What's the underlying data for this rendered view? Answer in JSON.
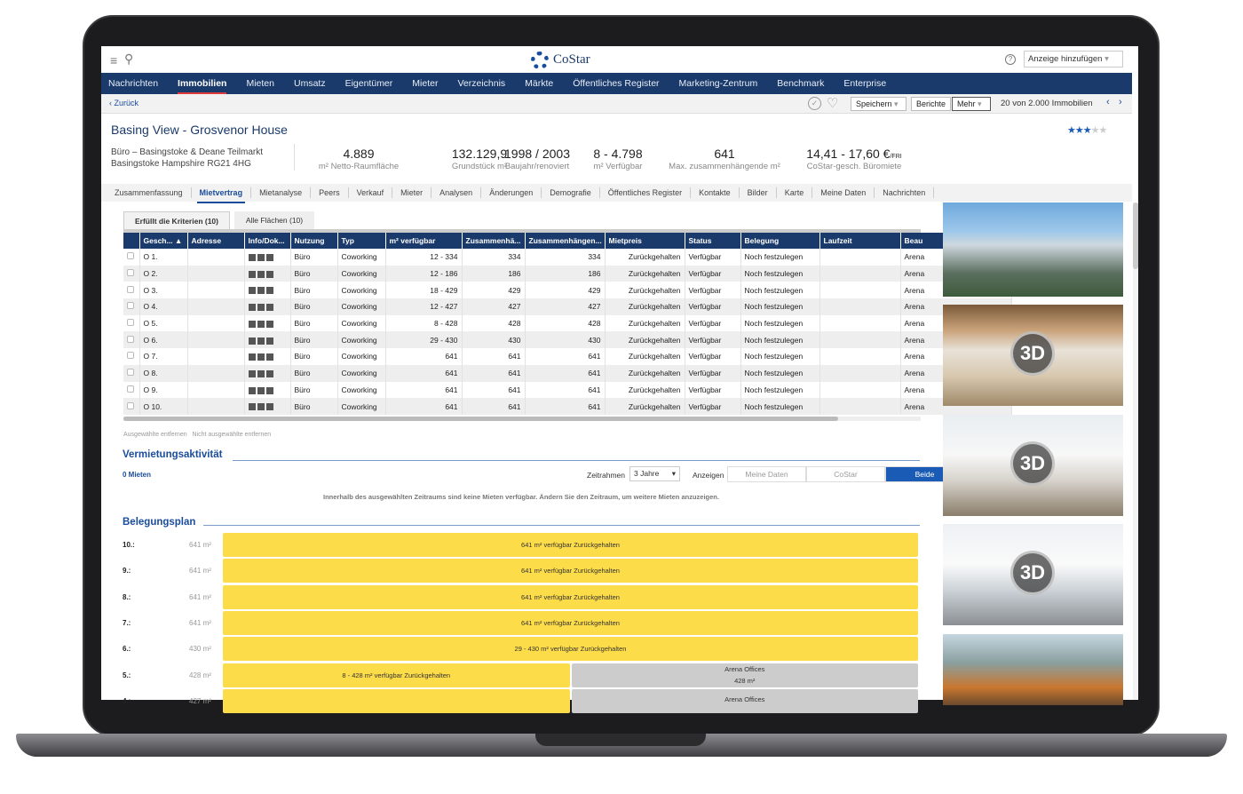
{
  "app": {
    "brand": "CoStar",
    "help": "?",
    "add_listing": "Anzeige hinzufügen"
  },
  "nav": [
    "Nachrichten",
    "Immobilien",
    "Mieten",
    "Umsatz",
    "Eigentümer",
    "Mieter",
    "Verzeichnis",
    "Märkte",
    "Öffentliches Register",
    "Marketing-Zentrum",
    "Benchmark",
    "Enterprise"
  ],
  "nav_active": 1,
  "subbar": {
    "back": "‹ Zurück",
    "save": "Speichern",
    "reports": "Berichte",
    "more": "Mehr",
    "count": "20 von 2.000 Immobilien"
  },
  "property": {
    "title": "Basing View - Grosvenor House",
    "line1": "Büro – Basingstoke & Deane Teilmarkt",
    "line2": "Basingstoke Hampshire RG21 4HG",
    "rating": 3,
    "rating_max": 5
  },
  "stats": [
    {
      "value": "4.889",
      "label": "m² Netto-Raumfläche"
    },
    {
      "value": "132.129,9",
      "label": "Grundstück m²"
    },
    {
      "value": "1998 / 2003",
      "label": "Baujahr/renoviert"
    },
    {
      "value": "8 - 4.798",
      "label": "m² Verfügbar"
    },
    {
      "value": "641",
      "label": "Max. zusammenhängende m²"
    },
    {
      "value": "14,41 - 17,60 €",
      "suffix": "/FRI",
      "label": "CoStar-gesch. Büromiete"
    }
  ],
  "tabs": [
    "Zusammenfassung",
    "Mietvertrag",
    "Mietanalyse",
    "Peers",
    "Verkauf",
    "Mieter",
    "Analysen",
    "Änderungen",
    "Demografie",
    "Öffentliches Register",
    "Kontakte",
    "Bilder",
    "Karte",
    "Meine Daten",
    "Nachrichten"
  ],
  "tab_active": 1,
  "subtabs": [
    "Erfüllt die Kriterien (10)",
    "Alle Flächen (10)"
  ],
  "table": {
    "columns": [
      "",
      "Gesch... ▲",
      "Adresse",
      "Info/Dok...",
      "Nutzung",
      "Typ",
      "m² verfügbar",
      "Zusammenhä...",
      "Zusammenhängen...",
      "Mietpreis",
      "Status",
      "Belegung",
      "Laufzeit",
      "Beau"
    ],
    "rows": [
      [
        "O 1.",
        "",
        "Büro",
        "Coworking",
        "12 - 334",
        "334",
        "334",
        "Zurückgehalten",
        "Verfügbar",
        "Noch festzulegen",
        "",
        "Arena"
      ],
      [
        "O 2.",
        "",
        "Büro",
        "Coworking",
        "12 - 186",
        "186",
        "186",
        "Zurückgehalten",
        "Verfügbar",
        "Noch festzulegen",
        "",
        "Arena"
      ],
      [
        "O 3.",
        "",
        "Büro",
        "Coworking",
        "18 - 429",
        "429",
        "429",
        "Zurückgehalten",
        "Verfügbar",
        "Noch festzulegen",
        "",
        "Arena"
      ],
      [
        "O 4.",
        "",
        "Büro",
        "Coworking",
        "12 - 427",
        "427",
        "427",
        "Zurückgehalten",
        "Verfügbar",
        "Noch festzulegen",
        "",
        "Arena"
      ],
      [
        "O 5.",
        "",
        "Büro",
        "Coworking",
        "8 - 428",
        "428",
        "428",
        "Zurückgehalten",
        "Verfügbar",
        "Noch festzulegen",
        "",
        "Arena"
      ],
      [
        "O 6.",
        "",
        "Büro",
        "Coworking",
        "29 - 430",
        "430",
        "430",
        "Zurückgehalten",
        "Verfügbar",
        "Noch festzulegen",
        "",
        "Arena"
      ],
      [
        "O 7.",
        "",
        "Büro",
        "Coworking",
        "641",
        "641",
        "641",
        "Zurückgehalten",
        "Verfügbar",
        "Noch festzulegen",
        "",
        "Arena"
      ],
      [
        "O 8.",
        "",
        "Büro",
        "Coworking",
        "641",
        "641",
        "641",
        "Zurückgehalten",
        "Verfügbar",
        "Noch festzulegen",
        "",
        "Arena"
      ],
      [
        "O 9.",
        "",
        "Büro",
        "Coworking",
        "641",
        "641",
        "641",
        "Zurückgehalten",
        "Verfügbar",
        "Noch festzulegen",
        "",
        "Arena"
      ],
      [
        "O 10.",
        "",
        "Büro",
        "Coworking",
        "641",
        "641",
        "641",
        "Zurückgehalten",
        "Verfügbar",
        "Noch festzulegen",
        "",
        "Arena"
      ]
    ]
  },
  "table_actions": [
    "Ausgewählte entfernen",
    "Nicht ausgewählte entfernen"
  ],
  "leasing": {
    "title": "Vermietungsaktivität",
    "count": "0 Mieten",
    "timeframe_label": "Zeitrahmen",
    "timeframe": "3 Jahre",
    "show_label": "Anzeigen",
    "toggle": [
      "Meine Daten",
      "CoStar",
      "Beide"
    ],
    "toggle_active": 2,
    "empty": "Innerhalb des ausgewählten Zeitraums sind keine Mieten verfügbar. Ändern Sie den Zeitraum, um weitere Mieten anzuzeigen."
  },
  "plan": {
    "title": "Belegungsplan",
    "rows": [
      {
        "floor": "10.:",
        "size": "641 m²",
        "bars": [
          {
            "text": "641 m² verfügbar Zurückgehalten",
            "type": "available",
            "share": 1
          }
        ]
      },
      {
        "floor": "9.:",
        "size": "641 m²",
        "bars": [
          {
            "text": "641 m² verfügbar Zurückgehalten",
            "type": "available",
            "share": 1
          }
        ]
      },
      {
        "floor": "8.:",
        "size": "641 m²",
        "bars": [
          {
            "text": "641 m² verfügbar Zurückgehalten",
            "type": "available",
            "share": 1
          }
        ]
      },
      {
        "floor": "7.:",
        "size": "641 m²",
        "bars": [
          {
            "text": "641 m² verfügbar Zurückgehalten",
            "type": "available",
            "share": 1
          }
        ]
      },
      {
        "floor": "6.:",
        "size": "430 m²",
        "bars": [
          {
            "text": "29 - 430 m² verfügbar Zurückgehalten",
            "type": "available",
            "share": 1
          }
        ]
      },
      {
        "floor": "5.:",
        "size": "428 m²",
        "bars": [
          {
            "text": "8 - 428 m² verfügbar Zurückgehalten",
            "type": "available",
            "share": 0.5
          },
          {
            "text": "Arena Offices",
            "sub": "428 m²",
            "type": "occupied",
            "share": 0.5
          }
        ]
      },
      {
        "floor": "4.:",
        "size": "427 m²",
        "bars": [
          {
            "text": "",
            "type": "available",
            "share": 0.5
          },
          {
            "text": "Arena Offices",
            "sub": "",
            "type": "occupied",
            "share": 0.5
          }
        ]
      }
    ]
  },
  "photos": [
    {
      "label": ""
    },
    {
      "label": "3D"
    },
    {
      "label": "3D"
    },
    {
      "label": "3D"
    },
    {
      "label": ""
    }
  ],
  "colors": {
    "nav": "#1a3a6b",
    "accent": "#1a4c9c",
    "available": "#fddc4a",
    "occupied": "#cccccc",
    "active_toggle": "#1a5cb5"
  }
}
